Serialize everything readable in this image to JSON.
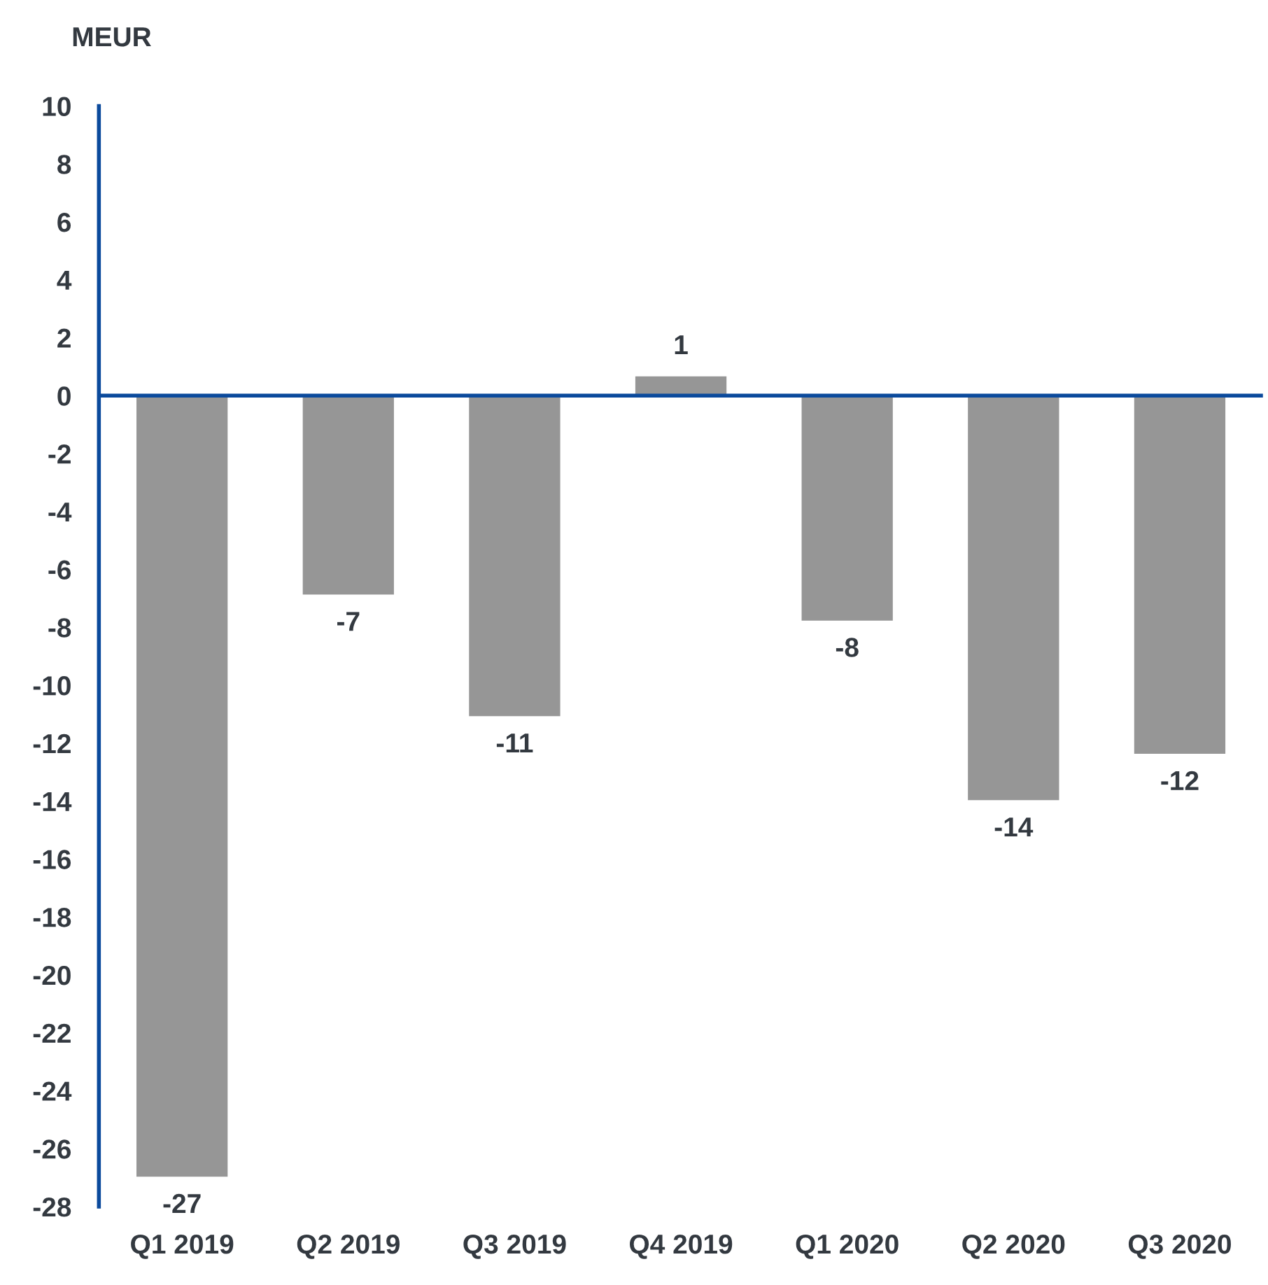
{
  "chart_data": {
    "type": "bar",
    "ylabel": "MEUR",
    "categories": [
      "Q1 2019",
      "Q2 2019",
      "Q3 2019",
      "Q4 2019",
      "Q1 2020",
      "Q2 2020",
      "Q3 2020"
    ],
    "values": [
      -27.0,
      -6.9,
      -11.1,
      0.7,
      -7.8,
      -14.0,
      -12.4
    ],
    "value_labels": [
      "-27",
      "-7",
      "-11",
      "1",
      "-8",
      "-14",
      "-12"
    ],
    "color": "#969696",
    "ylim": [
      -28,
      10
    ],
    "yticks": [
      -28,
      -26,
      -24,
      -22,
      -20,
      -18,
      -16,
      -14,
      -12,
      -10,
      -8,
      -6,
      -4,
      -2,
      0,
      2,
      4,
      6,
      8,
      10
    ],
    "ref_lines": [
      {
        "axis": "y",
        "value": 0,
        "color": "#0b4a9c",
        "line_style": "solid"
      }
    ],
    "grid": false,
    "legend": false
  }
}
